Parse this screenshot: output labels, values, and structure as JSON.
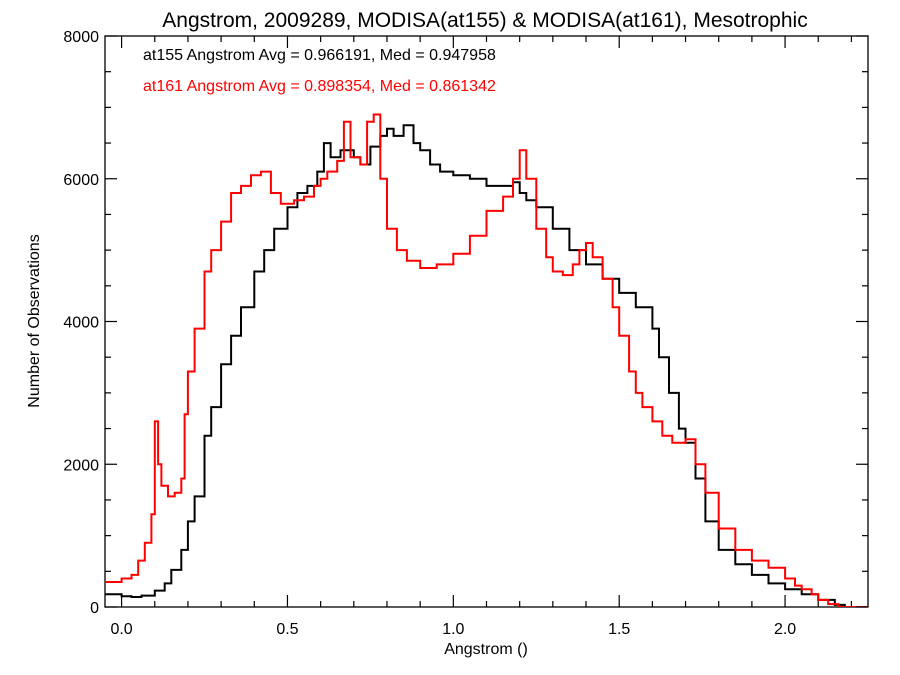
{
  "chart_data": {
    "type": "line",
    "step": true,
    "title": "Angstrom, 2009289, MODISA(at155) & MODISA(at161), Mesotrophic",
    "xlabel": "Angstrom ()",
    "ylabel": "Number of Observations",
    "xlim": [
      -0.05,
      2.25
    ],
    "ylim": [
      0,
      8000
    ],
    "xticks": [
      0.0,
      0.5,
      1.0,
      1.5,
      2.0
    ],
    "xtick_labels": [
      "0.0",
      "0.5",
      "1.0",
      "1.5",
      "2.0"
    ],
    "yticks": [
      0,
      2000,
      4000,
      6000,
      8000
    ],
    "ytick_labels": [
      "0",
      "2000",
      "4000",
      "6000",
      "8000"
    ],
    "grid": false,
    "legend_position": "top-left",
    "annotations": [
      {
        "text": "at155 Angstrom Avg = 0.966191, Med = 0.947958",
        "color": "#000000"
      },
      {
        "text": "at161 Angstrom Avg = 0.898354, Med = 0.861342",
        "color": "#ff0000"
      }
    ],
    "series": [
      {
        "color": "#000000",
        "points": [
          [
            -0.05,
            180
          ],
          [
            0.0,
            150
          ],
          [
            0.03,
            140
          ],
          [
            0.06,
            160
          ],
          [
            0.1,
            230
          ],
          [
            0.13,
            330
          ],
          [
            0.15,
            520
          ],
          [
            0.18,
            800
          ],
          [
            0.2,
            1200
          ],
          [
            0.22,
            1550
          ],
          [
            0.25,
            2400
          ],
          [
            0.27,
            2800
          ],
          [
            0.3,
            3400
          ],
          [
            0.33,
            3800
          ],
          [
            0.36,
            4200
          ],
          [
            0.4,
            4700
          ],
          [
            0.43,
            5000
          ],
          [
            0.46,
            5300
          ],
          [
            0.5,
            5600
          ],
          [
            0.53,
            5800
          ],
          [
            0.56,
            5900
          ],
          [
            0.59,
            6100
          ],
          [
            0.61,
            6500
          ],
          [
            0.63,
            6300
          ],
          [
            0.66,
            6400
          ],
          [
            0.7,
            6300
          ],
          [
            0.72,
            6200
          ],
          [
            0.75,
            6450
          ],
          [
            0.78,
            6600
          ],
          [
            0.8,
            6700
          ],
          [
            0.82,
            6600
          ],
          [
            0.85,
            6750
          ],
          [
            0.88,
            6500
          ],
          [
            0.9,
            6400
          ],
          [
            0.93,
            6200
          ],
          [
            0.96,
            6100
          ],
          [
            1.0,
            6050
          ],
          [
            1.05,
            6000
          ],
          [
            1.1,
            5900
          ],
          [
            1.15,
            5900
          ],
          [
            1.18,
            5950
          ],
          [
            1.2,
            5800
          ],
          [
            1.22,
            5700
          ],
          [
            1.25,
            5600
          ],
          [
            1.3,
            5300
          ],
          [
            1.35,
            5000
          ],
          [
            1.4,
            4800
          ],
          [
            1.45,
            4600
          ],
          [
            1.5,
            4400
          ],
          [
            1.55,
            4200
          ],
          [
            1.6,
            3900
          ],
          [
            1.62,
            3500
          ],
          [
            1.65,
            3000
          ],
          [
            1.68,
            2500
          ],
          [
            1.7,
            2300
          ],
          [
            1.73,
            1800
          ],
          [
            1.76,
            1200
          ],
          [
            1.8,
            800
          ],
          [
            1.85,
            600
          ],
          [
            1.9,
            450
          ],
          [
            1.95,
            330
          ],
          [
            2.0,
            250
          ],
          [
            2.05,
            180
          ],
          [
            2.1,
            100
          ],
          [
            2.15,
            30
          ],
          [
            2.18,
            0
          ],
          [
            2.25,
            0
          ]
        ]
      },
      {
        "color": "#ff0000",
        "points": [
          [
            -0.05,
            350
          ],
          [
            0.0,
            400
          ],
          [
            0.03,
            450
          ],
          [
            0.05,
            650
          ],
          [
            0.07,
            900
          ],
          [
            0.09,
            1300
          ],
          [
            0.1,
            2600
          ],
          [
            0.11,
            2000
          ],
          [
            0.12,
            1700
          ],
          [
            0.14,
            1550
          ],
          [
            0.16,
            1600
          ],
          [
            0.18,
            1800
          ],
          [
            0.19,
            2700
          ],
          [
            0.2,
            3300
          ],
          [
            0.22,
            3900
          ],
          [
            0.25,
            4700
          ],
          [
            0.27,
            5000
          ],
          [
            0.3,
            5400
          ],
          [
            0.33,
            5800
          ],
          [
            0.36,
            5900
          ],
          [
            0.39,
            6050
          ],
          [
            0.42,
            6100
          ],
          [
            0.45,
            5800
          ],
          [
            0.48,
            5650
          ],
          [
            0.52,
            5700
          ],
          [
            0.55,
            5750
          ],
          [
            0.58,
            5900
          ],
          [
            0.6,
            6000
          ],
          [
            0.62,
            6100
          ],
          [
            0.65,
            6250
          ],
          [
            0.67,
            6800
          ],
          [
            0.69,
            6300
          ],
          [
            0.72,
            6200
          ],
          [
            0.74,
            6800
          ],
          [
            0.76,
            6900
          ],
          [
            0.78,
            6000
          ],
          [
            0.8,
            5300
          ],
          [
            0.83,
            5000
          ],
          [
            0.86,
            4850
          ],
          [
            0.9,
            4750
          ],
          [
            0.95,
            4800
          ],
          [
            1.0,
            4950
          ],
          [
            1.05,
            5200
          ],
          [
            1.1,
            5550
          ],
          [
            1.15,
            5750
          ],
          [
            1.18,
            6000
          ],
          [
            1.2,
            6400
          ],
          [
            1.22,
            6000
          ],
          [
            1.25,
            5300
          ],
          [
            1.28,
            4900
          ],
          [
            1.3,
            4700
          ],
          [
            1.33,
            4650
          ],
          [
            1.36,
            4800
          ],
          [
            1.38,
            5000
          ],
          [
            1.4,
            5100
          ],
          [
            1.42,
            4900
          ],
          [
            1.45,
            4600
          ],
          [
            1.48,
            4200
          ],
          [
            1.5,
            3800
          ],
          [
            1.53,
            3300
          ],
          [
            1.55,
            3000
          ],
          [
            1.57,
            2800
          ],
          [
            1.6,
            2600
          ],
          [
            1.63,
            2400
          ],
          [
            1.66,
            2300
          ],
          [
            1.7,
            2350
          ],
          [
            1.73,
            2000
          ],
          [
            1.76,
            1600
          ],
          [
            1.8,
            1100
          ],
          [
            1.85,
            800
          ],
          [
            1.9,
            650
          ],
          [
            1.95,
            550
          ],
          [
            2.0,
            400
          ],
          [
            2.03,
            300
          ],
          [
            2.05,
            250
          ],
          [
            2.08,
            180
          ],
          [
            2.1,
            100
          ],
          [
            2.13,
            40
          ],
          [
            2.16,
            0
          ],
          [
            2.25,
            0
          ]
        ]
      }
    ]
  }
}
